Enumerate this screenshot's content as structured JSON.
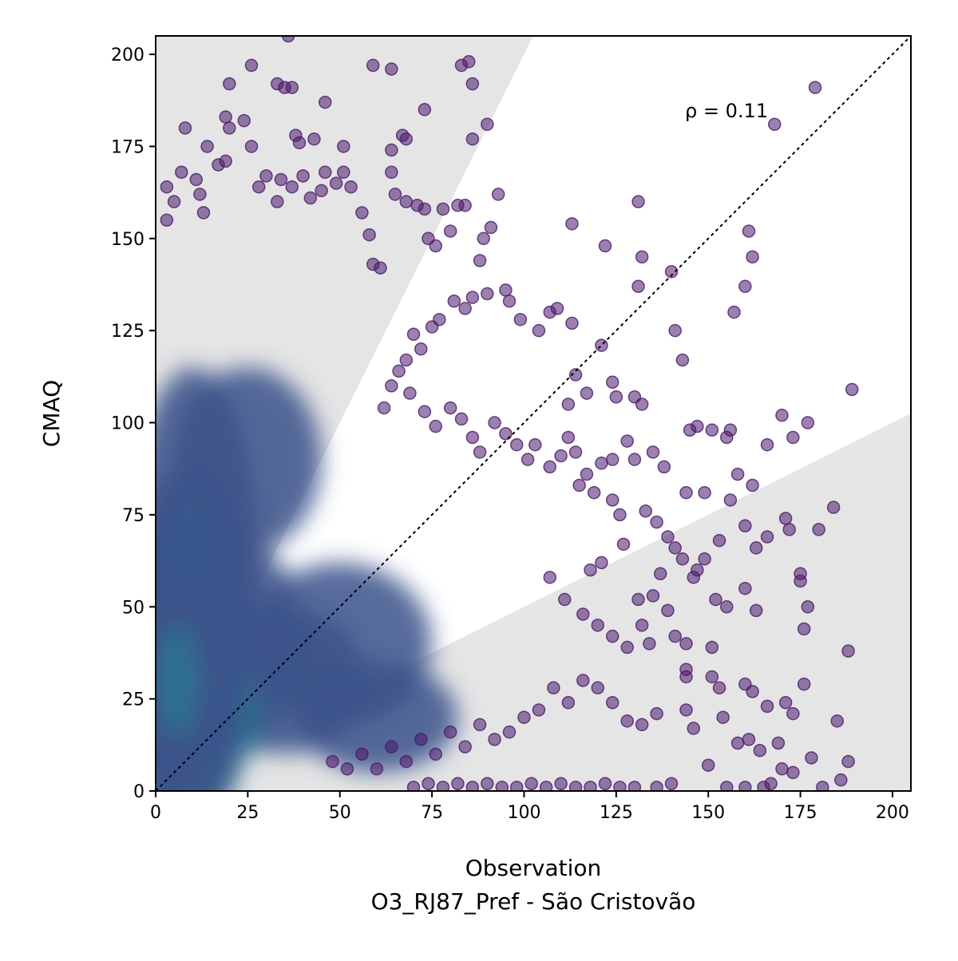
{
  "chart_data": {
    "type": "scatter",
    "title": "",
    "xlabel": "Observation",
    "xlabel_sub": "O3_RJ87_Pref - São Cristovão",
    "ylabel": "CMAQ",
    "xlim": [
      0,
      205
    ],
    "ylim": [
      0,
      205
    ],
    "xticks": [
      "0",
      "25",
      "50",
      "75",
      "100",
      "125",
      "150",
      "175",
      "200"
    ],
    "yticks": [
      "0",
      "25",
      "50",
      "75",
      "100",
      "125",
      "150",
      "175",
      "200"
    ],
    "annotation": "ρ = 0.11",
    "grid": false,
    "legend": "none",
    "reference_line": {
      "style": "dotted",
      "from": [
        0,
        0
      ],
      "to": [
        205,
        205
      ]
    },
    "acceptance_band": {
      "upper_slope": 2.0,
      "lower_slope": 0.5,
      "shading_color": "#e5e5e5"
    },
    "colormap": "viridis",
    "point_color": "#4b1a6b",
    "density_cores": [
      {
        "x": 8,
        "y": 6,
        "spread_x": 5,
        "spread_y": 4,
        "level": 1.0
      },
      {
        "x": 8,
        "y": 52,
        "spread_x": 5,
        "spread_y": 12,
        "level": 0.75
      },
      {
        "x": 6,
        "y": 30,
        "spread_x": 6,
        "spread_y": 15,
        "level": 0.55
      }
    ],
    "outliers": [
      [
        36,
        205
      ],
      [
        26,
        197
      ],
      [
        59,
        197
      ],
      [
        64,
        196
      ],
      [
        83,
        197
      ],
      [
        85,
        198
      ],
      [
        86,
        192
      ],
      [
        20,
        192
      ],
      [
        33,
        192
      ],
      [
        35,
        191
      ],
      [
        37,
        191
      ],
      [
        46,
        187
      ],
      [
        90,
        181
      ],
      [
        19,
        183
      ],
      [
        20,
        180
      ],
      [
        24,
        182
      ],
      [
        8,
        180
      ],
      [
        38,
        178
      ],
      [
        67,
        178
      ],
      [
        68,
        177
      ],
      [
        73,
        185
      ],
      [
        26,
        175
      ],
      [
        14,
        175
      ],
      [
        39,
        176
      ],
      [
        43,
        177
      ],
      [
        51,
        175
      ],
      [
        64,
        174
      ],
      [
        86,
        177
      ],
      [
        3,
        164
      ],
      [
        5,
        160
      ],
      [
        3,
        155
      ],
      [
        7,
        168
      ],
      [
        11,
        166
      ],
      [
        12,
        162
      ],
      [
        13,
        157
      ],
      [
        17,
        170
      ],
      [
        19,
        171
      ],
      [
        28,
        164
      ],
      [
        30,
        167
      ],
      [
        33,
        160
      ],
      [
        34,
        166
      ],
      [
        37,
        164
      ],
      [
        40,
        167
      ],
      [
        42,
        161
      ],
      [
        45,
        163
      ],
      [
        46,
        168
      ],
      [
        49,
        165
      ],
      [
        51,
        168
      ],
      [
        53,
        164
      ],
      [
        56,
        157
      ],
      [
        58,
        151
      ],
      [
        59,
        143
      ],
      [
        61,
        142
      ],
      [
        64,
        168
      ],
      [
        65,
        162
      ],
      [
        68,
        160
      ],
      [
        71,
        159
      ],
      [
        73,
        158
      ],
      [
        74,
        150
      ],
      [
        76,
        148
      ],
      [
        78,
        158
      ],
      [
        80,
        152
      ],
      [
        82,
        159
      ],
      [
        84,
        159
      ],
      [
        89,
        150
      ],
      [
        91,
        153
      ],
      [
        93,
        162
      ],
      [
        88,
        144
      ],
      [
        95,
        136
      ],
      [
        96,
        133
      ],
      [
        99,
        128
      ],
      [
        90,
        135
      ],
      [
        86,
        134
      ],
      [
        84,
        131
      ],
      [
        81,
        133
      ],
      [
        77,
        128
      ],
      [
        75,
        126
      ],
      [
        72,
        120
      ],
      [
        70,
        124
      ],
      [
        68,
        117
      ],
      [
        66,
        114
      ],
      [
        64,
        110
      ],
      [
        62,
        104
      ],
      [
        69,
        108
      ],
      [
        73,
        103
      ],
      [
        76,
        99
      ],
      [
        80,
        104
      ],
      [
        83,
        101
      ],
      [
        86,
        96
      ],
      [
        88,
        92
      ],
      [
        92,
        100
      ],
      [
        95,
        97
      ],
      [
        98,
        94
      ],
      [
        101,
        90
      ],
      [
        103,
        94
      ],
      [
        107,
        88
      ],
      [
        110,
        91
      ],
      [
        112,
        96
      ],
      [
        114,
        92
      ],
      [
        104,
        125
      ],
      [
        107,
        130
      ],
      [
        109,
        131
      ],
      [
        113,
        127
      ],
      [
        114,
        113
      ],
      [
        121,
        121
      ],
      [
        117,
        108
      ],
      [
        112,
        105
      ],
      [
        124,
        111
      ],
      [
        125,
        107
      ],
      [
        130,
        107
      ],
      [
        132,
        105
      ],
      [
        113,
        154
      ],
      [
        122,
        148
      ],
      [
        131,
        160
      ],
      [
        132,
        145
      ],
      [
        131,
        137
      ],
      [
        140,
        141
      ],
      [
        141,
        125
      ],
      [
        143,
        117
      ],
      [
        145,
        98
      ],
      [
        147,
        99
      ],
      [
        151,
        98
      ],
      [
        155,
        96
      ],
      [
        156,
        98
      ],
      [
        161,
        152
      ],
      [
        162,
        145
      ],
      [
        160,
        137
      ],
      [
        157,
        130
      ],
      [
        168,
        181
      ],
      [
        179,
        191
      ],
      [
        189,
        109
      ],
      [
        170,
        102
      ],
      [
        177,
        100
      ],
      [
        173,
        96
      ],
      [
        166,
        94
      ],
      [
        158,
        86
      ],
      [
        162,
        83
      ],
      [
        156,
        79
      ],
      [
        144,
        81
      ],
      [
        149,
        81
      ],
      [
        138,
        88
      ],
      [
        128,
        95
      ],
      [
        130,
        90
      ],
      [
        135,
        92
      ],
      [
        121,
        89
      ],
      [
        124,
        90
      ],
      [
        117,
        86
      ],
      [
        115,
        83
      ],
      [
        119,
        81
      ],
      [
        124,
        79
      ],
      [
        126,
        75
      ],
      [
        133,
        76
      ],
      [
        136,
        73
      ],
      [
        139,
        69
      ],
      [
        141,
        66
      ],
      [
        149,
        63
      ],
      [
        153,
        68
      ],
      [
        160,
        72
      ],
      [
        163,
        66
      ],
      [
        166,
        69
      ],
      [
        171,
        74
      ],
      [
        172,
        71
      ],
      [
        180,
        71
      ],
      [
        184,
        77
      ],
      [
        175,
        59
      ],
      [
        175,
        57
      ],
      [
        160,
        55
      ],
      [
        163,
        49
      ],
      [
        176,
        44
      ],
      [
        177,
        50
      ],
      [
        155,
        50
      ],
      [
        152,
        52
      ],
      [
        146,
        58
      ],
      [
        147,
        60
      ],
      [
        143,
        63
      ],
      [
        137,
        59
      ],
      [
        139,
        49
      ],
      [
        141,
        42
      ],
      [
        134,
        40
      ],
      [
        132,
        45
      ],
      [
        128,
        39
      ],
      [
        124,
        42
      ],
      [
        120,
        45
      ],
      [
        116,
        48
      ],
      [
        111,
        52
      ],
      [
        107,
        58
      ],
      [
        118,
        60
      ],
      [
        121,
        62
      ],
      [
        127,
        67
      ],
      [
        131,
        52
      ],
      [
        135,
        53
      ],
      [
        144,
        40
      ],
      [
        151,
        39
      ],
      [
        144,
        33
      ],
      [
        144,
        31
      ],
      [
        151,
        31
      ],
      [
        153,
        28
      ],
      [
        160,
        29
      ],
      [
        162,
        27
      ],
      [
        166,
        23
      ],
      [
        171,
        24
      ],
      [
        176,
        29
      ],
      [
        188,
        38
      ],
      [
        185,
        19
      ],
      [
        173,
        21
      ],
      [
        169,
        13
      ],
      [
        178,
        9
      ],
      [
        170,
        6
      ],
      [
        173,
        5
      ],
      [
        181,
        1
      ],
      [
        186,
        3
      ],
      [
        188,
        8
      ],
      [
        161,
        14
      ],
      [
        158,
        13
      ],
      [
        164,
        11
      ],
      [
        167,
        2
      ],
      [
        154,
        20
      ],
      [
        146,
        17
      ],
      [
        144,
        22
      ],
      [
        136,
        21
      ],
      [
        132,
        18
      ],
      [
        128,
        19
      ],
      [
        124,
        24
      ],
      [
        120,
        28
      ],
      [
        116,
        30
      ],
      [
        112,
        24
      ],
      [
        108,
        28
      ],
      [
        104,
        22
      ],
      [
        100,
        20
      ],
      [
        96,
        16
      ],
      [
        92,
        14
      ],
      [
        88,
        18
      ],
      [
        84,
        12
      ],
      [
        80,
        16
      ],
      [
        76,
        10
      ],
      [
        72,
        14
      ],
      [
        68,
        8
      ],
      [
        64,
        12
      ],
      [
        60,
        6
      ],
      [
        56,
        10
      ],
      [
        52,
        6
      ],
      [
        48,
        8
      ],
      [
        150,
        7
      ],
      [
        155,
        1
      ],
      [
        160,
        1
      ],
      [
        165,
        1
      ],
      [
        140,
        2
      ],
      [
        136,
        1
      ],
      [
        130,
        1
      ],
      [
        126,
        1
      ],
      [
        122,
        2
      ],
      [
        118,
        1
      ],
      [
        114,
        1
      ],
      [
        110,
        2
      ],
      [
        106,
        1
      ],
      [
        102,
        2
      ],
      [
        98,
        1
      ],
      [
        94,
        1
      ],
      [
        90,
        2
      ],
      [
        86,
        1
      ],
      [
        82,
        2
      ],
      [
        78,
        1
      ],
      [
        74,
        2
      ],
      [
        70,
        1
      ]
    ]
  }
}
